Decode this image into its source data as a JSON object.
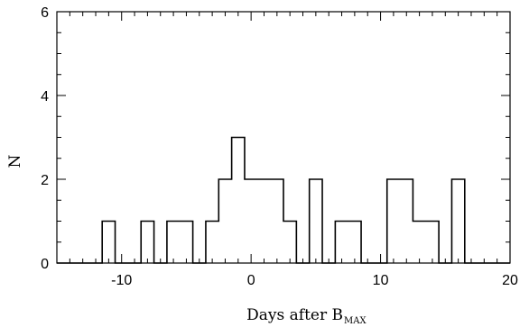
{
  "chart_data": {
    "type": "bar",
    "style": "step-histogram",
    "bin_width": 1,
    "bins": [
      {
        "x": -11,
        "value": 1
      },
      {
        "x": -8,
        "value": 1
      },
      {
        "x": -6,
        "value": 1
      },
      {
        "x": -5,
        "value": 1
      },
      {
        "x": -3,
        "value": 1
      },
      {
        "x": -2,
        "value": 2
      },
      {
        "x": -1,
        "value": 3
      },
      {
        "x": 0,
        "value": 2
      },
      {
        "x": 1,
        "value": 2
      },
      {
        "x": 2,
        "value": 2
      },
      {
        "x": 3,
        "value": 1
      },
      {
        "x": 5,
        "value": 2
      },
      {
        "x": 7,
        "value": 1
      },
      {
        "x": 8,
        "value": 1
      },
      {
        "x": 11,
        "value": 2
      },
      {
        "x": 12,
        "value": 2
      },
      {
        "x": 13,
        "value": 1
      },
      {
        "x": 14,
        "value": 1
      },
      {
        "x": 16,
        "value": 2
      }
    ],
    "xlim": [
      -15,
      20
    ],
    "ylim": [
      0,
      6
    ],
    "x_major_ticks": [
      -10,
      0,
      10,
      20
    ],
    "x_tick_labels": [
      "-10",
      "0",
      "10",
      "20"
    ],
    "y_major_ticks": [
      0,
      2,
      4,
      6
    ],
    "y_tick_labels": [
      "0",
      "2",
      "4",
      "6"
    ],
    "xlabel": "Days after B",
    "xlabel_subscript": "MAX",
    "ylabel": "N",
    "grid": false,
    "color": "#000000"
  }
}
